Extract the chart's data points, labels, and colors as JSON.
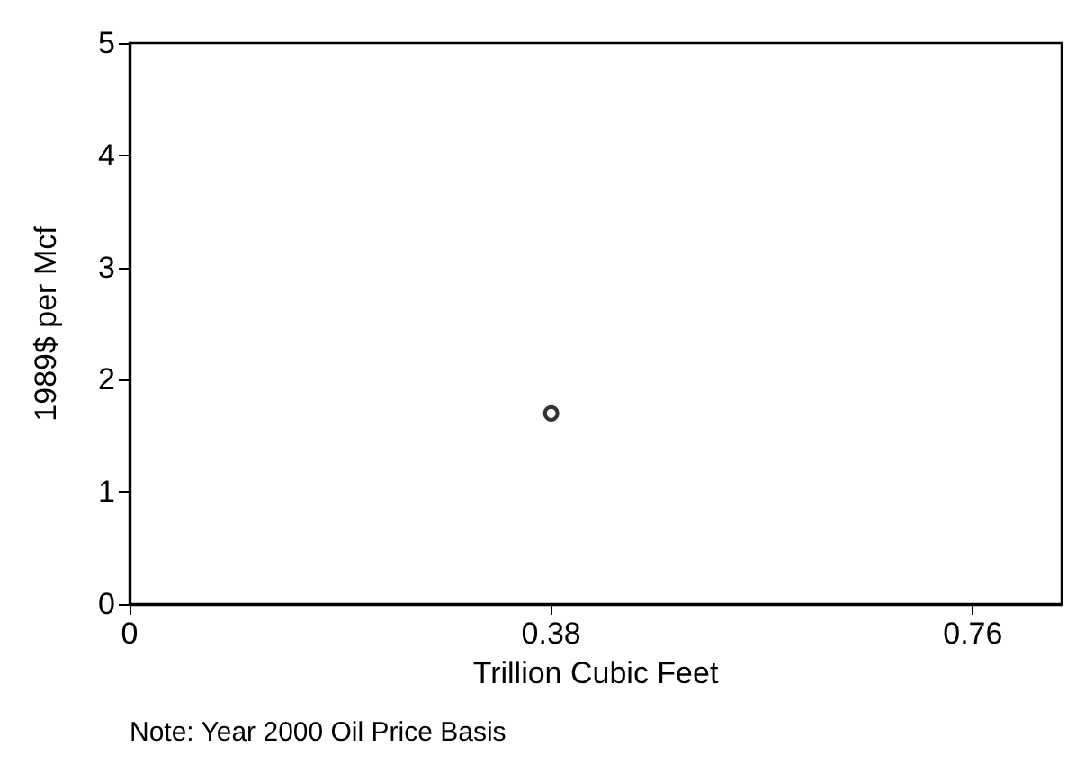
{
  "chart_data": {
    "type": "scatter",
    "x": [
      0.38
    ],
    "series": [
      {
        "color": "#000000",
        "values": [
          1.7
        ]
      }
    ],
    "xlabel": "Trillion Cubic Feet",
    "ylabel": "1989$ per Mcf",
    "xlim": [
      0,
      0.84
    ],
    "xticks": [
      0,
      0.38,
      0.76
    ],
    "ylim": [
      0,
      5
    ],
    "yticks": [
      0,
      1,
      2,
      3,
      4,
      5
    ],
    "marker": "circle",
    "annotations": [
      "Note: Year 2000 Oil Price Basis"
    ]
  }
}
